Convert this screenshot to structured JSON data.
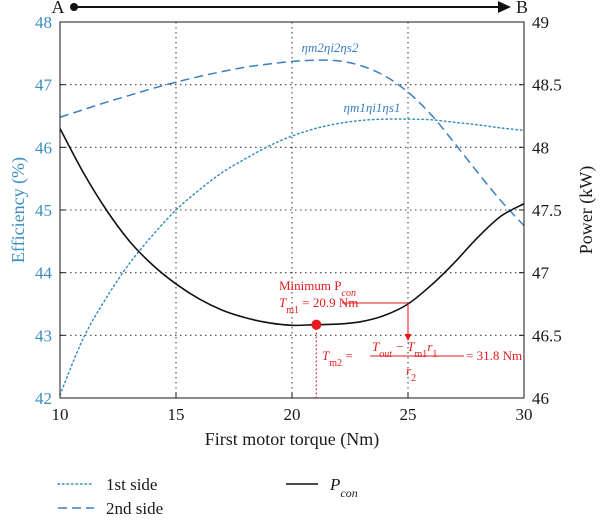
{
  "chart_data": {
    "type": "line",
    "xlabel": "First motor torque (Nm)",
    "ylabel_left": "Efficiency (%)",
    "ylabel_right": "Power (kW)",
    "xlim": [
      10,
      30
    ],
    "ylim_left": [
      42,
      48
    ],
    "ylim_right": [
      46,
      49
    ],
    "xticks": [
      10,
      15,
      20,
      25,
      30
    ],
    "yticks_left": [
      42,
      43,
      44,
      45,
      46,
      47,
      48
    ],
    "yticks_right": [
      "46",
      "46.5",
      "47",
      "47.5",
      "48",
      "48.5",
      "49"
    ],
    "grid": true,
    "top_arrow": {
      "from_label": "A",
      "to_label": "B"
    },
    "series": [
      {
        "name": "1st side",
        "axis": "left",
        "style": "dotted",
        "color": "#3a8fc0",
        "curve_label": {
          "main": "η",
          "parts": [
            [
              "m1",
              "η"
            ],
            [
              "i1",
              "η"
            ],
            [
              "s1",
              ""
            ]
          ]
        },
        "x": [
          10,
          11,
          12,
          13,
          14,
          15,
          16,
          17,
          18,
          19,
          20,
          21,
          22,
          23,
          24,
          25,
          26,
          27,
          28,
          29,
          30
        ],
        "y": [
          42.05,
          42.95,
          43.6,
          44.15,
          44.6,
          45.0,
          45.32,
          45.6,
          45.82,
          46.02,
          46.18,
          46.3,
          46.38,
          46.43,
          46.45,
          46.45,
          46.44,
          46.4,
          46.36,
          46.31,
          46.27
        ]
      },
      {
        "name": "2nd side",
        "axis": "left",
        "style": "dashed",
        "color": "#3a7fc0",
        "x": [
          10,
          11,
          12,
          13,
          14,
          15,
          16,
          17,
          18,
          19,
          20,
          21,
          22,
          23,
          24,
          25,
          26,
          27,
          28,
          29,
          30
        ],
        "y": [
          46.48,
          46.6,
          46.72,
          46.83,
          46.94,
          47.04,
          47.13,
          47.21,
          47.28,
          47.33,
          47.37,
          47.39,
          47.38,
          47.3,
          47.14,
          46.88,
          46.52,
          46.07,
          45.6,
          45.15,
          44.75
        ]
      },
      {
        "name": "P_con",
        "axis": "right",
        "style": "solid",
        "color": "#111111",
        "x": [
          10,
          11,
          12,
          13,
          14,
          15,
          16,
          17,
          18,
          19,
          20,
          21,
          22,
          23,
          24,
          25,
          26,
          27,
          28,
          29,
          30
        ],
        "y": [
          48.15,
          47.8,
          47.5,
          47.25,
          47.06,
          46.91,
          46.79,
          46.7,
          46.64,
          46.6,
          46.58,
          46.585,
          46.59,
          46.61,
          46.66,
          46.75,
          46.9,
          47.08,
          47.28,
          47.45,
          47.55
        ]
      }
    ],
    "curve_labels": {
      "first": "ηm1ηi1ηs1",
      "second": "ηm2ηi2ηs2"
    },
    "annotation": {
      "point": {
        "x": 21.05,
        "y_right": 46.585
      },
      "eq_anchor": {
        "x": 25,
        "y_right": 46.75
      },
      "minimum_label": "Minimum P",
      "minimum_sub": "con",
      "tm1_text": "T",
      "tm1_sub": "m1",
      "tm1_value": " = 20.9 Nm",
      "tm2_text": "T",
      "tm2_sub": "m2",
      "tm2_numerator": "T",
      "tm2_num_sub1": "out",
      "tm2_num_mid": " − T",
      "tm2_num_sub2": "m1",
      "tm2_num_r": "r",
      "tm2_num_r_sub": "1",
      "tm2_denominator": "r",
      "tm2_den_sub": "2",
      "tm2_value": " = 31.8 Nm",
      "color": "#e41a1c"
    },
    "legend": {
      "first": "1st side",
      "second": "2nd side",
      "third_main": "P",
      "third_sub": "con"
    }
  }
}
